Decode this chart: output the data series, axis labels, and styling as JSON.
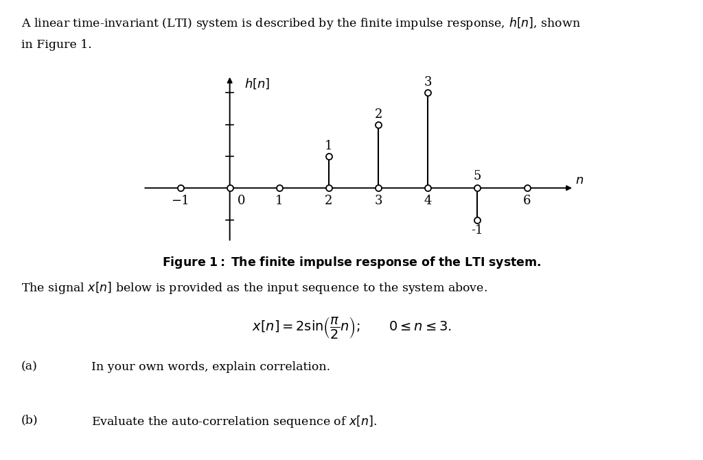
{
  "stem_n": [
    -1,
    0,
    1,
    2,
    3,
    4,
    5,
    6
  ],
  "stem_vals": [
    0,
    0,
    0,
    1,
    2,
    3,
    -1,
    0
  ],
  "xlim": [
    -1.8,
    7.0
  ],
  "ylim": [
    -1.9,
    3.6
  ],
  "bg_color": "#ffffff",
  "line_color": "#000000",
  "tick_labels_below": [
    -1,
    0,
    1,
    2,
    3,
    4,
    6
  ],
  "tick_label_above": [
    5
  ],
  "ytick_marks": [
    -1,
    1,
    2,
    3
  ],
  "line1": "A linear time-invariant (LTI) system is described by the finite impulse response, $h[n]$, shown",
  "line2": "in Figure 1.",
  "caption": "Figure 1: The finite impulse response of the LTI system.",
  "signal_intro": "The signal $x[n]$ below is provided as the input sequence to the system above.",
  "part_a_label": "(a)",
  "part_a_text": "In your own words, explain correlation.",
  "part_b_label": "(b)",
  "part_b_text": "Evaluate the auto-correlation sequence of $x[n]$.",
  "ylabel": "$h[n]$",
  "xlabel": "$n$"
}
